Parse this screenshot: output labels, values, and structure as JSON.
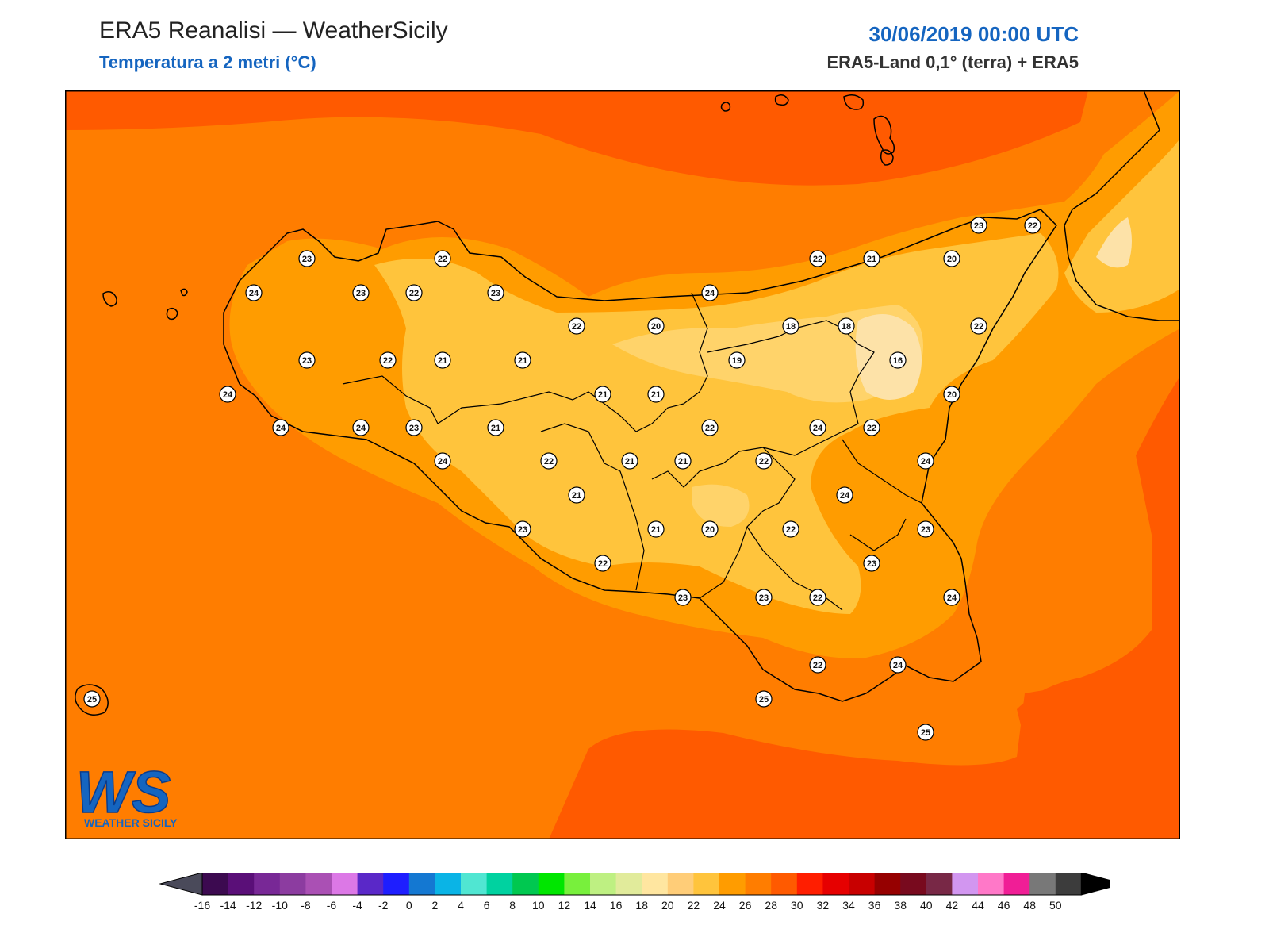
{
  "header": {
    "title": "ERA5 Reanalisi — WeatherSicily",
    "subtitle": "Temperatura a 2 metri (°C)",
    "datetime": "30/06/2019 00:00 UTC",
    "source": "ERA5-Land 0,1° (terra) + ERA5"
  },
  "logo": {
    "letters": "WS",
    "text": "WEATHER SICILY"
  },
  "colors": {
    "sea_outer": "#ff5a00",
    "sea_main": "#ff7d00",
    "t24": "#ff9c00",
    "t22": "#ffc43c",
    "t20": "#ffd36a",
    "t18": "#fde2a8",
    "accent": "#1565c0"
  },
  "stations": [
    {
      "value": "23"
    },
    {
      "value": "22"
    },
    {
      "value": "22"
    },
    {
      "value": "21"
    },
    {
      "value": "20"
    },
    {
      "value": "23"
    },
    {
      "value": "22"
    },
    {
      "value": "24"
    },
    {
      "value": "23"
    },
    {
      "value": "22"
    },
    {
      "value": "23"
    },
    {
      "value": "24"
    },
    {
      "value": "22"
    },
    {
      "value": "20"
    },
    {
      "value": "18"
    },
    {
      "value": "18"
    },
    {
      "value": "22"
    },
    {
      "value": "23"
    },
    {
      "value": "22"
    },
    {
      "value": "21"
    },
    {
      "value": "21"
    },
    {
      "value": "19"
    },
    {
      "value": "16"
    },
    {
      "value": "24"
    },
    {
      "value": "21"
    },
    {
      "value": "21"
    },
    {
      "value": "20"
    },
    {
      "value": "24"
    },
    {
      "value": "24"
    },
    {
      "value": "23"
    },
    {
      "value": "21"
    },
    {
      "value": "22"
    },
    {
      "value": "24"
    },
    {
      "value": "22"
    },
    {
      "value": "24"
    },
    {
      "value": "22"
    },
    {
      "value": "21"
    },
    {
      "value": "21"
    },
    {
      "value": "22"
    },
    {
      "value": "24"
    },
    {
      "value": "21"
    },
    {
      "value": "24"
    },
    {
      "value": "23"
    },
    {
      "value": "21"
    },
    {
      "value": "20"
    },
    {
      "value": "22"
    },
    {
      "value": "23"
    },
    {
      "value": "22"
    },
    {
      "value": "23"
    },
    {
      "value": "23"
    },
    {
      "value": "23"
    },
    {
      "value": "22"
    },
    {
      "value": "24"
    },
    {
      "value": "22"
    },
    {
      "value": "24"
    },
    {
      "value": "25"
    },
    {
      "value": "25"
    },
    {
      "value": "25"
    }
  ],
  "colorbar": {
    "labels": [
      "-16",
      "-14",
      "-12",
      "-10",
      "-8",
      "-6",
      "-4",
      "-2",
      "0",
      "2",
      "4",
      "6",
      "8",
      "10",
      "12",
      "14",
      "16",
      "18",
      "20",
      "22",
      "24",
      "26",
      "28",
      "30",
      "32",
      "34",
      "36",
      "38",
      "40",
      "42",
      "44",
      "46",
      "48",
      "50"
    ],
    "colors": [
      "#3c0a50",
      "#5a0f78",
      "#782896",
      "#8c3ca0",
      "#aa50b4",
      "#dc78e6",
      "#5a28c8",
      "#1e1eff",
      "#1478d2",
      "#0ab4e6",
      "#50e6d2",
      "#00d2a0",
      "#00c850",
      "#00e600",
      "#78f03c",
      "#bef082",
      "#e1eb9b",
      "#ffe6a0",
      "#ffcd78",
      "#ffc43c",
      "#ff9c00",
      "#ff7d00",
      "#ff5a00",
      "#ff1e00",
      "#e60000",
      "#c80000",
      "#960000",
      "#780a1e",
      "#782846",
      "#d296f0",
      "#ff78c8",
      "#f01e96",
      "#787878",
      "#3c3c3c"
    ]
  }
}
